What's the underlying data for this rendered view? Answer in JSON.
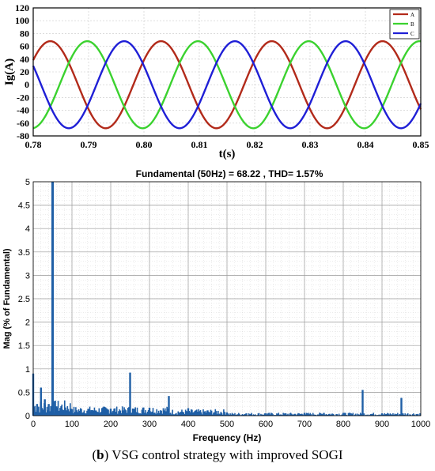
{
  "caption": {
    "label": "b",
    "text": "VSG control strategy with improved SOGI"
  },
  "chart_data": [
    {
      "type": "line",
      "xlabel": "t(s)",
      "ylabel": "Ig(A)",
      "xlim": [
        0.78,
        0.85
      ],
      "ylim": [
        -80,
        120
      ],
      "xticks": [
        "0.78",
        "0.79",
        "0.80",
        "0.81",
        "0.82",
        "0.83",
        "0.84",
        "0.85"
      ],
      "yticks": [
        "-80",
        "-60",
        "-40",
        "-20",
        "0",
        "20",
        "40",
        "60",
        "80",
        "100",
        "120"
      ],
      "grid": true,
      "legend_position": "top-right",
      "frequency_hz": 50,
      "series": [
        {
          "name": "A",
          "color": "#b22a1a",
          "amplitude": 68,
          "phase_deg": 0
        },
        {
          "name": "B",
          "color": "#3bd22f",
          "amplitude": 68,
          "phase_deg": -120
        },
        {
          "name": "C",
          "color": "#1f1fd6",
          "amplitude": 68,
          "phase_deg": 120
        }
      ]
    },
    {
      "type": "bar",
      "title": "Fundamental (50Hz) = 68.22 , THD= 1.57%",
      "xlabel": "Frequency (Hz)",
      "ylabel": "Mag (% of Fundamental)",
      "xlim": [
        0,
        1000
      ],
      "ylim": [
        0,
        5
      ],
      "xticks": [
        "0",
        "100",
        "200",
        "300",
        "400",
        "500",
        "600",
        "700",
        "800",
        "900",
        "1000"
      ],
      "yticks": [
        "0",
        "0.5",
        "1",
        "1.5",
        "2",
        "2.5",
        "3",
        "3.5",
        "4",
        "4.5",
        "5"
      ],
      "grid": true,
      "bar_color": "#1f5fa6",
      "x": [
        0,
        10,
        20,
        30,
        40,
        50,
        60,
        80,
        100,
        150,
        200,
        250,
        300,
        350,
        400,
        450,
        500,
        550,
        600,
        650,
        700,
        750,
        800,
        850,
        900,
        950
      ],
      "values": [
        0.9,
        0.25,
        0.6,
        0.35,
        0.25,
        5.0,
        0.2,
        0.12,
        0.14,
        0.12,
        0.15,
        0.92,
        0.17,
        0.42,
        0.16,
        0.09,
        0.07,
        0.05,
        0.05,
        0.05,
        0.06,
        0.06,
        0.06,
        0.55,
        0.05,
        0.38
      ]
    }
  ]
}
